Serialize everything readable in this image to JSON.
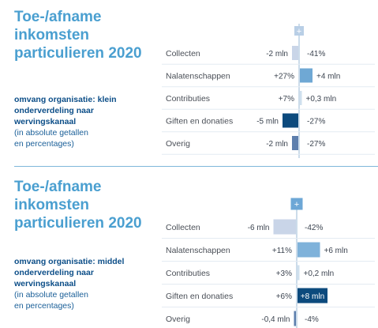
{
  "chart_data": [
    {
      "type": "bar",
      "title": "Toe-/afname inkomsten particulieren 2020",
      "subtitle_bold": [
        "omvang organisatie: klein"
      ],
      "subtitle_lines": [
        "onderverdeling naar",
        "wervingskanaal"
      ],
      "subtitle_note": [
        "(in absolute getallen",
        "en percentages)"
      ],
      "plus_label": "+",
      "categories": [
        "Collecten",
        "Nalatenschappen",
        "Contributies",
        "Giften en donaties",
        "Overig"
      ],
      "values_mln": [
        -2,
        4,
        0.3,
        -5,
        -2
      ],
      "value_labels": [
        "-2 mln",
        "+4 mln",
        "+0,3 mln",
        "-5 mln",
        "-2 mln"
      ],
      "pct_labels": [
        "-41%",
        "+27%",
        "+7%",
        "-27%",
        "-27%"
      ],
      "bar_colors": [
        "#c9d5e8",
        "#6fa8d4",
        "#cfe0ee",
        "#0c4a7d",
        "#5d7fad"
      ],
      "max_abs": 5
    },
    {
      "type": "bar",
      "title": "Toe-/afname inkomsten particulieren 2020",
      "subtitle_bold": [
        "omvang organisatie: middel"
      ],
      "subtitle_lines": [
        "onderverdeling naar",
        "wervingskanaal"
      ],
      "subtitle_note": [
        "(in absolute getallen",
        "en percentages)"
      ],
      "plus_label": "+",
      "categories": [
        "Collecten",
        "Nalatenschappen",
        "Contributies",
        "Giften en donaties",
        "Overig"
      ],
      "values_mln": [
        -6,
        6,
        0.2,
        8,
        -0.4
      ],
      "value_labels": [
        "-6 mln",
        "+6 mln",
        "+0,2 mln",
        "+8 mln",
        "-0,4 mln"
      ],
      "pct_labels": [
        "-42%",
        "+11%",
        "+3%",
        "+6%",
        "-4%"
      ],
      "bar_colors": [
        "#c9d5e8",
        "#7fb2da",
        "#cfe0ee",
        "#0c4a7d",
        "#5d7fad"
      ],
      "max_abs": 8
    }
  ]
}
